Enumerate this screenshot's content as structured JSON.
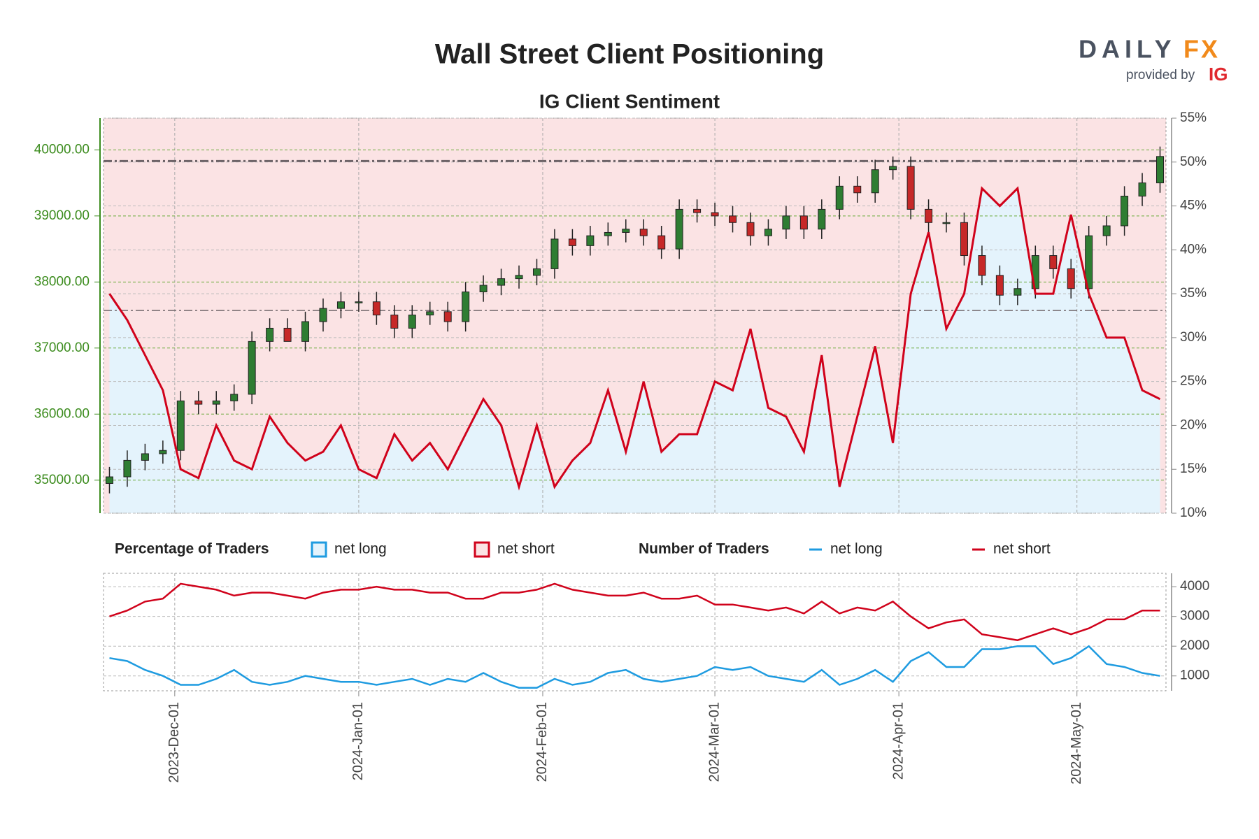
{
  "logo": {
    "brand": "DAILY",
    "brand_accent": "FX",
    "tagline": "provided by",
    "provider": "IG"
  },
  "chart_data": [
    {
      "type": "candlestick",
      "title": "Wall Street Client Positioning",
      "subtitle": "IG Client Sentiment",
      "legend_title": "Percentage of Traders",
      "legend": [
        {
          "name": "net long",
          "color": "#1e9be0",
          "fill": "#e4f3fc"
        },
        {
          "name": "net short",
          "color": "#d0021b",
          "fill": "#fbe3e4"
        }
      ],
      "up_color": "#2e7d32",
      "down_color": "#c62828",
      "x": [
        "2023-11-20",
        "2023-11-23",
        "2023-11-26",
        "2023-11-29",
        "2023-12-02",
        "2023-12-05",
        "2023-12-08",
        "2023-12-11",
        "2023-12-14",
        "2023-12-17",
        "2023-12-20",
        "2023-12-23",
        "2023-12-26",
        "2023-12-29",
        "2024-01-01",
        "2024-01-04",
        "2024-01-07",
        "2024-01-10",
        "2024-01-13",
        "2024-01-16",
        "2024-01-19",
        "2024-01-22",
        "2024-01-25",
        "2024-01-28",
        "2024-01-31",
        "2024-02-03",
        "2024-02-06",
        "2024-02-09",
        "2024-02-12",
        "2024-02-15",
        "2024-02-18",
        "2024-02-21",
        "2024-02-24",
        "2024-02-27",
        "2024-03-01",
        "2024-03-04",
        "2024-03-07",
        "2024-03-10",
        "2024-03-13",
        "2024-03-16",
        "2024-03-19",
        "2024-03-22",
        "2024-03-25",
        "2024-03-28",
        "2024-03-31",
        "2024-04-03",
        "2024-04-06",
        "2024-04-09",
        "2024-04-12",
        "2024-04-15",
        "2024-04-18",
        "2024-04-21",
        "2024-04-24",
        "2024-04-27",
        "2024-04-30",
        "2024-05-03",
        "2024-05-06",
        "2024-05-09",
        "2024-05-12",
        "2024-05-15"
      ],
      "open": [
        34950,
        35050,
        35300,
        35400,
        35450,
        36200,
        36150,
        36200,
        36300,
        37100,
        37300,
        37100,
        37400,
        37600,
        37700,
        37700,
        37500,
        37300,
        37500,
        37550,
        37400,
        37850,
        37950,
        38050,
        38100,
        38200,
        38650,
        38550,
        38700,
        38750,
        38800,
        38700,
        38500,
        39100,
        39050,
        39000,
        38900,
        38700,
        38800,
        39000,
        38800,
        39100,
        39450,
        39350,
        39700,
        39750,
        39100,
        38900,
        38900,
        38400,
        38100,
        37800,
        37900,
        38400,
        38200,
        37900,
        38700,
        38850,
        39300,
        39500
      ],
      "high": [
        35200,
        35450,
        35550,
        35600,
        36350,
        36350,
        36350,
        36450,
        37250,
        37450,
        37450,
        37550,
        37750,
        37850,
        37850,
        37850,
        37650,
        37650,
        37700,
        37700,
        38000,
        38100,
        38200,
        38250,
        38350,
        38800,
        38800,
        38850,
        38900,
        38950,
        38950,
        38850,
        39250,
        39250,
        39200,
        39150,
        39050,
        38950,
        39150,
        39150,
        39250,
        39600,
        39600,
        39850,
        39900,
        39900,
        39250,
        39050,
        39050,
        38550,
        38250,
        38050,
        38550,
        38550,
        38350,
        38850,
        39000,
        39450,
        39650,
        40050
      ],
      "low": [
        34800,
        34900,
        35150,
        35250,
        35300,
        36000,
        36000,
        36050,
        36150,
        36950,
        37150,
        36950,
        37250,
        37450,
        37550,
        37350,
        37150,
        37150,
        37350,
        37250,
        37250,
        37700,
        37800,
        37900,
        37950,
        38050,
        38400,
        38400,
        38550,
        38600,
        38550,
        38350,
        38350,
        38900,
        38850,
        38750,
        38550,
        38550,
        38650,
        38650,
        38650,
        38950,
        39200,
        39200,
        39550,
        38950,
        38750,
        38750,
        38250,
        37950,
        37650,
        37650,
        37750,
        38050,
        37750,
        37750,
        38550,
        38700,
        39150,
        39350
      ],
      "close": [
        35050,
        35300,
        35400,
        35450,
        36200,
        36150,
        36200,
        36300,
        37100,
        37300,
        37100,
        37400,
        37600,
        37700,
        37700,
        37500,
        37300,
        37500,
        37550,
        37400,
        37850,
        37950,
        38050,
        38100,
        38200,
        38650,
        38550,
        38700,
        38750,
        38800,
        38700,
        38500,
        39100,
        39050,
        39000,
        38900,
        38700,
        38800,
        39000,
        38800,
        39100,
        39450,
        39350,
        39700,
        39750,
        39100,
        38900,
        38900,
        38400,
        38100,
        37800,
        37900,
        38400,
        38200,
        37900,
        38700,
        38850,
        39300,
        39500,
        39900
      ],
      "series": [
        {
          "name": "net short",
          "color": "#d0021b",
          "axis": "y2",
          "values": [
            35,
            32,
            28,
            24,
            15,
            14,
            20,
            16,
            15,
            21,
            18,
            16,
            17,
            20,
            15,
            14,
            19,
            16,
            18,
            15,
            19,
            23,
            20,
            13,
            20,
            13,
            16,
            18,
            24,
            17,
            25,
            17,
            19,
            19,
            25,
            24,
            31,
            22,
            21,
            17,
            28,
            13,
            21,
            29,
            18,
            35,
            42,
            31,
            35,
            47,
            45,
            47,
            35,
            35,
            44,
            35,
            30,
            30,
            24,
            23
          ]
        }
      ],
      "reference_lines": [
        39830,
        37570
      ],
      "xlim": [
        "2023-11-19",
        "2024-05-16"
      ],
      "ylim": [
        34500,
        40480
      ],
      "yticks": [
        {
          "value": 35000,
          "label": "35000.00"
        },
        {
          "value": 36000,
          "label": "36000.00"
        },
        {
          "value": 37000,
          "label": "37000.00"
        },
        {
          "value": 38000,
          "label": "38000.00"
        },
        {
          "value": 39000,
          "label": "39000.00"
        },
        {
          "value": 40000,
          "label": "40000.00"
        }
      ],
      "y2lim": [
        10,
        55
      ],
      "y2ticks": [
        {
          "value": 10,
          "label": "10%"
        },
        {
          "value": 15,
          "label": "15%"
        },
        {
          "value": 20,
          "label": "20%"
        },
        {
          "value": 25,
          "label": "25%"
        },
        {
          "value": 30,
          "label": "30%"
        },
        {
          "value": 35,
          "label": "35%"
        },
        {
          "value": 40,
          "label": "40%"
        },
        {
          "value": 45,
          "label": "45%"
        },
        {
          "value": 50,
          "label": "50%"
        },
        {
          "value": 55,
          "label": "55%"
        }
      ],
      "grid": true
    },
    {
      "type": "line",
      "legend_title": "Number of Traders",
      "x": [
        "2023-11-20",
        "2023-11-23",
        "2023-11-26",
        "2023-11-29",
        "2023-12-02",
        "2023-12-05",
        "2023-12-08",
        "2023-12-11",
        "2023-12-14",
        "2023-12-17",
        "2023-12-20",
        "2023-12-23",
        "2023-12-26",
        "2023-12-29",
        "2024-01-01",
        "2024-01-04",
        "2024-01-07",
        "2024-01-10",
        "2024-01-13",
        "2024-01-16",
        "2024-01-19",
        "2024-01-22",
        "2024-01-25",
        "2024-01-28",
        "2024-01-31",
        "2024-02-03",
        "2024-02-06",
        "2024-02-09",
        "2024-02-12",
        "2024-02-15",
        "2024-02-18",
        "2024-02-21",
        "2024-02-24",
        "2024-02-27",
        "2024-03-01",
        "2024-03-04",
        "2024-03-07",
        "2024-03-10",
        "2024-03-13",
        "2024-03-16",
        "2024-03-19",
        "2024-03-22",
        "2024-03-25",
        "2024-03-28",
        "2024-03-31",
        "2024-04-03",
        "2024-04-06",
        "2024-04-09",
        "2024-04-12",
        "2024-04-15",
        "2024-04-18",
        "2024-04-21",
        "2024-04-24",
        "2024-04-27",
        "2024-04-30",
        "2024-05-03",
        "2024-05-06",
        "2024-05-09",
        "2024-05-12",
        "2024-05-15"
      ],
      "series": [
        {
          "name": "net long",
          "color": "#1e9be0",
          "values": [
            1600,
            1500,
            1200,
            1000,
            700,
            700,
            900,
            1200,
            800,
            700,
            800,
            1000,
            900,
            800,
            800,
            700,
            800,
            900,
            700,
            900,
            800,
            1100,
            800,
            600,
            600,
            900,
            700,
            800,
            1100,
            1200,
            900,
            800,
            900,
            1000,
            1300,
            1200,
            1300,
            1000,
            900,
            800,
            1200,
            700,
            900,
            1200,
            800,
            1500,
            1800,
            1300,
            1300,
            1900,
            1900,
            2000,
            2000,
            1400,
            1600,
            2000,
            1400,
            1300,
            1100,
            1000
          ]
        },
        {
          "name": "net short",
          "color": "#d0021b",
          "values": [
            3000,
            3200,
            3500,
            3600,
            4100,
            4000,
            3900,
            3700,
            3800,
            3800,
            3700,
            3600,
            3800,
            3900,
            3900,
            4000,
            3900,
            3900,
            3800,
            3800,
            3600,
            3600,
            3800,
            3800,
            3900,
            4100,
            3900,
            3800,
            3700,
            3700,
            3800,
            3600,
            3600,
            3700,
            3400,
            3400,
            3300,
            3200,
            3300,
            3100,
            3500,
            3100,
            3300,
            3200,
            3500,
            3000,
            2600,
            2800,
            2900,
            2400,
            2300,
            2200,
            2400,
            2600,
            2400,
            2600,
            2900,
            2900,
            3200,
            3200
          ]
        }
      ],
      "xlim": [
        "2023-11-19",
        "2024-05-16"
      ],
      "xticks": [
        {
          "value": "2023-12-01",
          "label": "2023-Dec-01"
        },
        {
          "value": "2024-01-01",
          "label": "2024-Jan-01"
        },
        {
          "value": "2024-02-01",
          "label": "2024-Feb-01"
        },
        {
          "value": "2024-03-01",
          "label": "2024-Mar-01"
        },
        {
          "value": "2024-04-01",
          "label": "2024-Apr-01"
        },
        {
          "value": "2024-05-01",
          "label": "2024-May-01"
        }
      ],
      "ylim": [
        500,
        4450
      ],
      "yticks": [
        1000,
        2000,
        3000,
        4000
      ],
      "grid": true
    }
  ]
}
